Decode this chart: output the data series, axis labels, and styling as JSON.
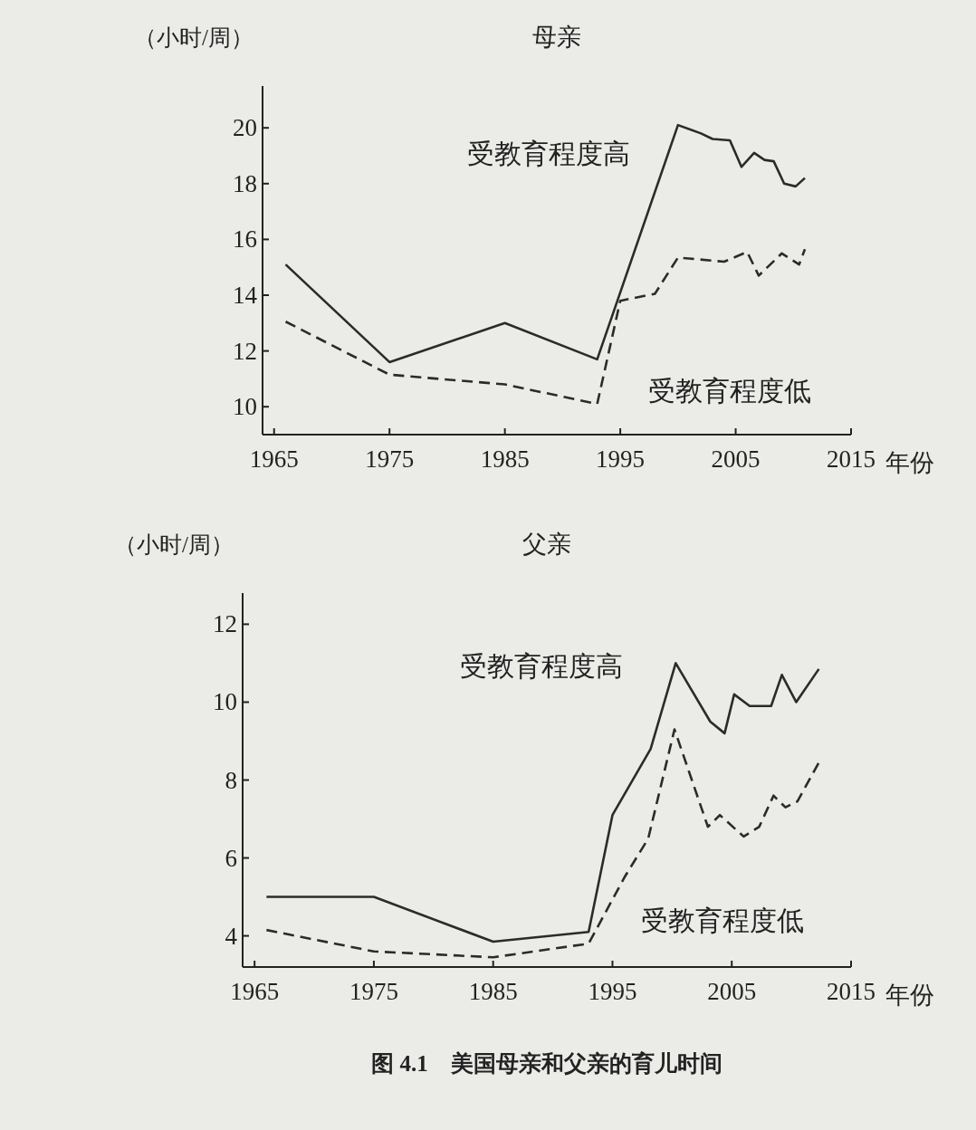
{
  "chart_data": [
    {
      "type": "line",
      "title": "母亲",
      "ylabel": "（小时/周）",
      "xlabel": "年份",
      "xlim": [
        1964,
        2015
      ],
      "xticks": [
        1965,
        1975,
        1985,
        1995,
        2005,
        2015
      ],
      "ylim": [
        9,
        21.5
      ],
      "yticks": [
        10,
        12,
        14,
        16,
        18,
        20
      ],
      "grid": false,
      "legend": false,
      "marker": "none",
      "series": [
        {
          "name": "受教育程度高",
          "color": "#2b2b2b",
          "line_style": "solid",
          "x": [
            1966,
            1975,
            1985,
            1993,
            2000,
            2002,
            2003,
            2004.5,
            2005.5,
            2006.6,
            2007.5,
            2008.3,
            2009.2,
            2010.2,
            2011
          ],
          "values": [
            15.1,
            11.6,
            13.0,
            11.7,
            20.1,
            19.8,
            19.6,
            19.55,
            18.6,
            19.1,
            18.85,
            18.8,
            18.0,
            17.9,
            18.2
          ]
        },
        {
          "name": "受教育程度低",
          "color": "#2b2b2b",
          "line_style": "dashed",
          "x": [
            1966,
            1975,
            1985,
            1993,
            1995,
            1998,
            2000,
            2004,
            2006,
            2007,
            2009,
            2010.5,
            2011
          ],
          "values": [
            13.05,
            11.15,
            10.8,
            10.1,
            13.8,
            14.05,
            15.35,
            15.2,
            15.55,
            14.7,
            15.5,
            15.1,
            15.65
          ]
        }
      ]
    },
    {
      "type": "line",
      "title": "父亲",
      "ylabel": "（小时/周）",
      "xlabel": "年份",
      "xlim": [
        1964,
        2015
      ],
      "xticks": [
        1965,
        1975,
        1985,
        1995,
        2005,
        2015
      ],
      "ylim": [
        3.2,
        12.8
      ],
      "yticks": [
        4,
        6,
        8,
        10,
        12
      ],
      "grid": false,
      "legend": false,
      "marker": "none",
      "annotations": [
        "图 4.1　美国母亲和父亲的育儿时间"
      ],
      "series": [
        {
          "name": "受教育程度高",
          "color": "#2b2b2b",
          "line_style": "solid",
          "x": [
            1966,
            1975,
            1985,
            1993,
            1995,
            1998.2,
            2000.3,
            2003.2,
            2004.4,
            2005.2,
            2006.5,
            2008.3,
            2009.2,
            2010.4,
            2012.3
          ],
          "values": [
            5.0,
            5.0,
            3.85,
            4.1,
            7.1,
            8.8,
            11.0,
            9.5,
            9.2,
            10.2,
            9.9,
            9.9,
            10.7,
            10.0,
            10.85
          ]
        },
        {
          "name": "受教育程度低",
          "color": "#2b2b2b",
          "line_style": "dashed",
          "x": [
            1966,
            1975,
            1985,
            1993,
            1996,
            1998,
            2000.2,
            2003,
            2004,
            2006,
            2007.3,
            2008.5,
            2009.5,
            2010.5,
            2012.3
          ],
          "values": [
            4.15,
            3.6,
            3.45,
            3.8,
            5.5,
            6.5,
            9.3,
            6.8,
            7.1,
            6.55,
            6.8,
            7.6,
            7.3,
            7.45,
            8.45
          ]
        }
      ]
    }
  ]
}
